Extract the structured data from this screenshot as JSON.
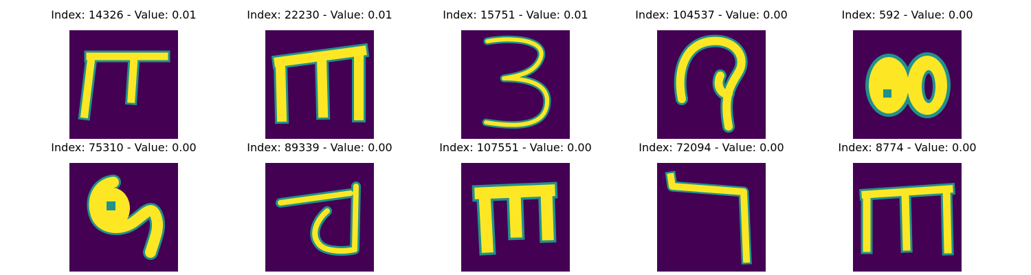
{
  "grid": {
    "background_color": "#440154",
    "glyph_color": "#fde725",
    "edge_color": "#21918c",
    "items": [
      {
        "title": "Index: 14326 - Value: 0.01"
      },
      {
        "title": "Index: 22230 - Value: 0.01"
      },
      {
        "title": "Index: 15751 - Value: 0.01"
      },
      {
        "title": "Index: 104537 - Value: 0.00"
      },
      {
        "title": "Index: 592 - Value: 0.00"
      },
      {
        "title": "Index: 75310 - Value: 0.00"
      },
      {
        "title": "Index: 89339 - Value: 0.00"
      },
      {
        "title": "Index: 107551 - Value: 0.00"
      },
      {
        "title": "Index: 72094 - Value: 0.00"
      },
      {
        "title": "Index: 8774 - Value: 0.00"
      }
    ]
  }
}
